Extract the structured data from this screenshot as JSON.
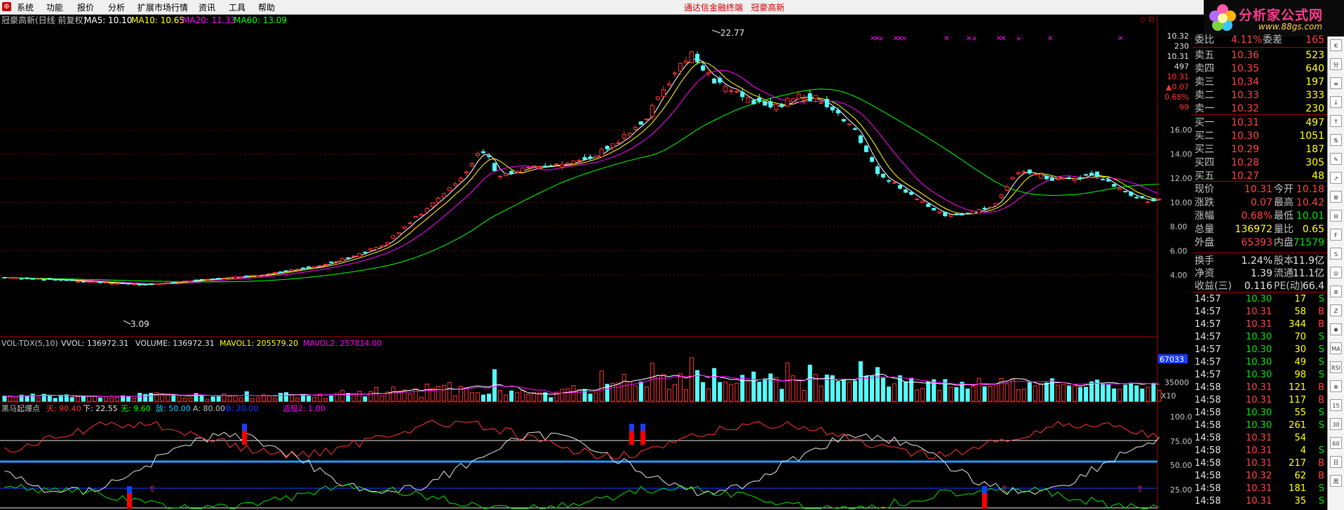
{
  "menu": {
    "items": [
      "系统",
      "功能",
      "报价",
      "分析",
      "扩展市场行情",
      "资讯",
      "工具",
      "帮助"
    ]
  },
  "title": {
    "left": "通达信金融终端",
    "right": "冠豪高新"
  },
  "brand": {
    "name": "分析家公式网",
    "url": "www.88gs.com"
  },
  "kline": {
    "legend": {
      "stock": "冠豪高新(日线 前复权)",
      "ma5": "MA5: 10.10",
      "ma10": "MA10: 10.65",
      "ma20": "MA20: 11.33",
      "ma60": "MA60: 13.09"
    },
    "high_label": "22.77",
    "low_label": "3.09",
    "y_ticks": [
      "16.00",
      "14.00",
      "12.00",
      "10.00",
      "8.00",
      "6.00",
      "4.00"
    ],
    "cursor_box": [
      "10.32",
      "230",
      "10.31",
      "497",
      "10.31",
      "▲0.07",
      "0.68%",
      "99"
    ],
    "corner_icon": "◇ ⊡"
  },
  "volume": {
    "legend": {
      "name": "VOL-TDX(5,10)",
      "vvol": "VVOL: 136972.31",
      "volume": "VOLUME: 136972.31",
      "mavol1": "MAVOL1: 205579.20",
      "mavol2": "MAVOL2: 257814.00"
    },
    "y_ticks": [
      "67033",
      "35000",
      "X10"
    ]
  },
  "indicator": {
    "legend": {
      "name": "黑马起爆点",
      "a": "天: 90.40",
      "b": "下: 22.55",
      "c": "无: 9.60",
      "d": "敌: 50.00",
      "e": "A: 80.00",
      "f": "B: 20.00",
      "g": "选股2: 1.00"
    },
    "y_ticks": [
      "100.0",
      "75.00",
      "50.00",
      "25.00"
    ]
  },
  "quote": {
    "header": {
      "label": "委比",
      "value": "4.11%",
      "label2": "委差",
      "value2": "165"
    },
    "sells": [
      {
        "label": "卖五",
        "price": "10.36",
        "vol": "523"
      },
      {
        "label": "卖四",
        "price": "10.35",
        "vol": "640"
      },
      {
        "label": "卖三",
        "price": "10.34",
        "vol": "197"
      },
      {
        "label": "卖二",
        "price": "10.33",
        "vol": "333"
      },
      {
        "label": "卖一",
        "price": "10.32",
        "vol": "230"
      }
    ],
    "buys": [
      {
        "label": "买一",
        "price": "10.31",
        "vol": "497"
      },
      {
        "label": "买二",
        "price": "10.30",
        "vol": "1051"
      },
      {
        "label": "买三",
        "price": "10.29",
        "vol": "187"
      },
      {
        "label": "买四",
        "price": "10.28",
        "vol": "305"
      },
      {
        "label": "买五",
        "price": "10.27",
        "vol": "48"
      }
    ],
    "stats": [
      {
        "l1": "现价",
        "v1": "10.31",
        "l2": "今开",
        "v2": "10.18"
      },
      {
        "l1": "涨跌",
        "v1": "0.07",
        "l2": "最高",
        "v2": "10.42"
      },
      {
        "l1": "涨幅",
        "v1": "0.68%",
        "l2": "最低",
        "v2": "10.01"
      },
      {
        "l1": "总量",
        "v1": "136972",
        "l2": "量比",
        "v2": "0.65"
      },
      {
        "l1": "外盘",
        "v1": "65393",
        "l2": "内盘",
        "v2": "71579"
      }
    ],
    "stats2": [
      {
        "l1": "换手",
        "v1": "1.24%",
        "l2": "股本",
        "v2": "11.9亿"
      },
      {
        "l1": "净资",
        "v1": "1.39",
        "l2": "流通",
        "v2": "11.1亿"
      },
      {
        "l1": "收益(三)",
        "v1": "0.116",
        "l2": "PE(动)",
        "v2": "66.4"
      }
    ]
  },
  "ticks": [
    {
      "time": "14:57",
      "price": "10.30",
      "vol": "17",
      "side": "S"
    },
    {
      "time": "14:57",
      "price": "10.31",
      "vol": "58",
      "side": "B"
    },
    {
      "time": "14:57",
      "price": "10.31",
      "vol": "344",
      "side": "B"
    },
    {
      "time": "14:57",
      "price": "10.30",
      "vol": "70",
      "side": "S"
    },
    {
      "time": "14:57",
      "price": "10.30",
      "vol": "30",
      "side": "S"
    },
    {
      "time": "14:57",
      "price": "10.30",
      "vol": "49",
      "side": "S"
    },
    {
      "time": "14:57",
      "price": "10.30",
      "vol": "98",
      "side": "S"
    },
    {
      "time": "14:58",
      "price": "10.31",
      "vol": "121",
      "side": "B"
    },
    {
      "time": "14:58",
      "price": "10.31",
      "vol": "117",
      "side": "B"
    },
    {
      "time": "14:58",
      "price": "10.30",
      "vol": "55",
      "side": "S"
    },
    {
      "time": "14:58",
      "price": "10.30",
      "vol": "261",
      "side": "S"
    },
    {
      "time": "14:58",
      "price": "10.31",
      "vol": "54",
      "side": ""
    },
    {
      "time": "14:58",
      "price": "10.31",
      "vol": "4",
      "side": "S"
    },
    {
      "time": "14:58",
      "price": "10.31",
      "vol": "217",
      "side": "B"
    },
    {
      "time": "14:58",
      "price": "10.32",
      "vol": "62",
      "side": "B"
    },
    {
      "time": "14:58",
      "price": "10.31",
      "vol": "181",
      "side": "S"
    },
    {
      "time": "14:58",
      "price": "10.31",
      "vol": "35",
      "side": "S"
    }
  ],
  "toolbar": {
    "items": [
      "K",
      "分",
      "≡",
      "↓",
      "↑",
      "⇅",
      "✎",
      "↗",
      "⊞",
      "⊟",
      "F",
      "S",
      "◎",
      "≣",
      "Z",
      "✱",
      "MA",
      "RSI",
      "⊕",
      "15",
      "30",
      "60",
      "日",
      "周"
    ]
  },
  "colors": {
    "up": "#ff3232",
    "down": "#54ffff",
    "ma5": "#ffffff",
    "ma10": "#ffff00",
    "ma20": "#ff00ff",
    "ma60": "#00ff00",
    "grid": "#800000",
    "axis": "#a00000"
  }
}
